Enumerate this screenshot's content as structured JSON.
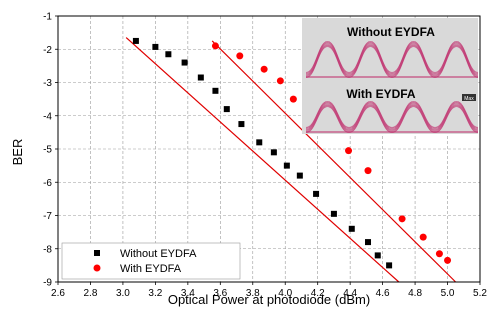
{
  "chart_data": {
    "type": "scatter",
    "title": "",
    "xlabel": "Optical Power at photodiode (dBm)",
    "ylabel": "BER",
    "xlim": [
      2.6,
      5.2
    ],
    "ylim": [
      -9,
      -1
    ],
    "x_ticks": [
      "2.6",
      "2.8",
      "3.0",
      "3.2",
      "3.4",
      "3.6",
      "3.8",
      "4.0",
      "4.2",
      "4.4",
      "4.6",
      "4.8",
      "5.0",
      "5.2"
    ],
    "y_ticks": [
      "-1",
      "-2",
      "-3",
      "-4",
      "-5",
      "-6",
      "-7",
      "-8",
      "-9"
    ],
    "y_scale": "log10 BER",
    "grid": "dashed",
    "legend_position": "bottom-left",
    "series": [
      {
        "name": "Without EYDFA",
        "marker": "square",
        "color": "#000000",
        "x": [
          3.08,
          3.2,
          3.28,
          3.38,
          3.48,
          3.57,
          3.64,
          3.73,
          3.84,
          3.93,
          4.01,
          4.09,
          4.19,
          4.3,
          4.41,
          4.51,
          4.57,
          4.64
        ],
        "y": [
          -1.75,
          -1.93,
          -2.15,
          -2.4,
          -2.85,
          -3.25,
          -3.8,
          -4.25,
          -4.8,
          -5.1,
          -5.5,
          -5.8,
          -6.35,
          -6.95,
          -7.4,
          -7.8,
          -8.2,
          -8.5
        ],
        "fit": {
          "x": [
            3.02,
            4.7
          ],
          "y": [
            -1.65,
            -9.0
          ],
          "color": "#e00000"
        }
      },
      {
        "name": "With EYDFA",
        "marker": "circle",
        "color": "#ff0000",
        "x": [
          3.57,
          3.72,
          3.87,
          3.97,
          4.05,
          4.13,
          4.23,
          4.39,
          4.51,
          4.72,
          4.85,
          4.95,
          5.0
        ],
        "y": [
          -1.9,
          -2.2,
          -2.6,
          -2.95,
          -3.5,
          -4.0,
          -4.4,
          -5.05,
          -5.65,
          -7.1,
          -7.65,
          -8.15,
          -8.35
        ],
        "fit": {
          "x": [
            3.55,
            5.05
          ],
          "y": [
            -1.75,
            -9.0
          ],
          "color": "#e00000"
        }
      }
    ]
  },
  "inset": {
    "top_label": "Without EYDFA",
    "bottom_label": "With EYDFA",
    "badge": "Max",
    "trace_color": "#c0306e",
    "background": "#d9d9d9"
  }
}
